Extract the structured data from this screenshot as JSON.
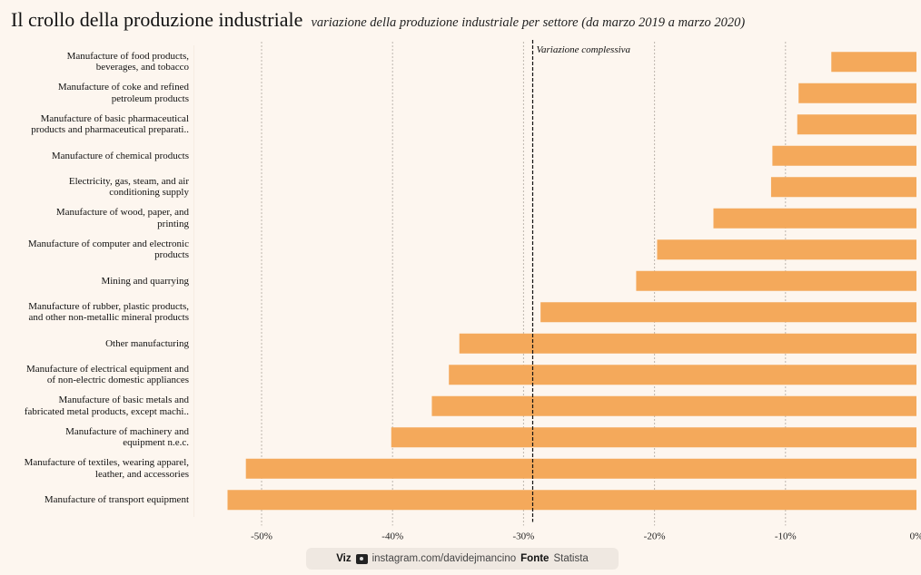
{
  "header": {
    "title": "Il crollo della produzione industriale",
    "subtitle": "variazione della produzione industriale per settore (da marzo 2019 a marzo 2020)"
  },
  "colors": {
    "background": "#fdf6ef",
    "bar": "#f4a95b",
    "grid": "#bdb6ae",
    "reference_line": "#111111"
  },
  "chart_data": {
    "type": "bar",
    "orientation": "horizontal",
    "title": "Il crollo della produzione industriale",
    "subtitle": "variazione della produzione industriale per settore (da marzo 2019 a marzo 2020)",
    "xlabel": "",
    "ylabel": "",
    "xlim": [
      -55,
      0
    ],
    "x_ticks": [
      -50,
      -40,
      -30,
      -20,
      -10,
      0
    ],
    "x_tick_labels": [
      "-50%",
      "-40%",
      "-30%",
      "-20%",
      "-10%",
      "0%"
    ],
    "grid": "vertical dotted",
    "categories": [
      [
        "Manufacture of food products,",
        "beverages, and tobacco"
      ],
      [
        "Manufacture of coke and refined",
        "petroleum products"
      ],
      [
        "Manufacture of basic pharmaceutical",
        "products and pharmaceutical preparati.."
      ],
      [
        "Manufacture of chemical products"
      ],
      [
        "Electricity, gas, steam, and air",
        "conditioning supply"
      ],
      [
        "Manufacture of wood, paper, and",
        "printing"
      ],
      [
        "Manufacture of computer and electronic",
        "products"
      ],
      [
        "Mining and quarrying"
      ],
      [
        "Manufacture of rubber, plastic products,",
        "and other non-metallic mineral products"
      ],
      [
        "Other manufacturing"
      ],
      [
        "Manufacture of electrical equipment and",
        "of non-electric domestic appliances"
      ],
      [
        "Manufacture of basic metals and",
        "fabricated metal products, except machi.."
      ],
      [
        "Manufacture of machinery and",
        "equipment n.e.c."
      ],
      [
        "Manufacture of textiles, wearing apparel,",
        "leather, and accessories"
      ],
      [
        "Manufacture of transport equipment"
      ]
    ],
    "values": [
      -6.5,
      -9.0,
      -9.1,
      -11.0,
      -11.1,
      -15.5,
      -19.8,
      -21.4,
      -28.7,
      -34.9,
      -35.7,
      -37.0,
      -40.1,
      -51.2,
      -52.6
    ],
    "reference_line": {
      "value": -29.3,
      "label": "Variazione complessiva"
    }
  },
  "footer": {
    "viz_label": "Viz",
    "viz_icon": "instagram-camera-icon",
    "handle": "instagram.com/davidejmancino",
    "source_label": "Fonte",
    "source": "Statista"
  }
}
